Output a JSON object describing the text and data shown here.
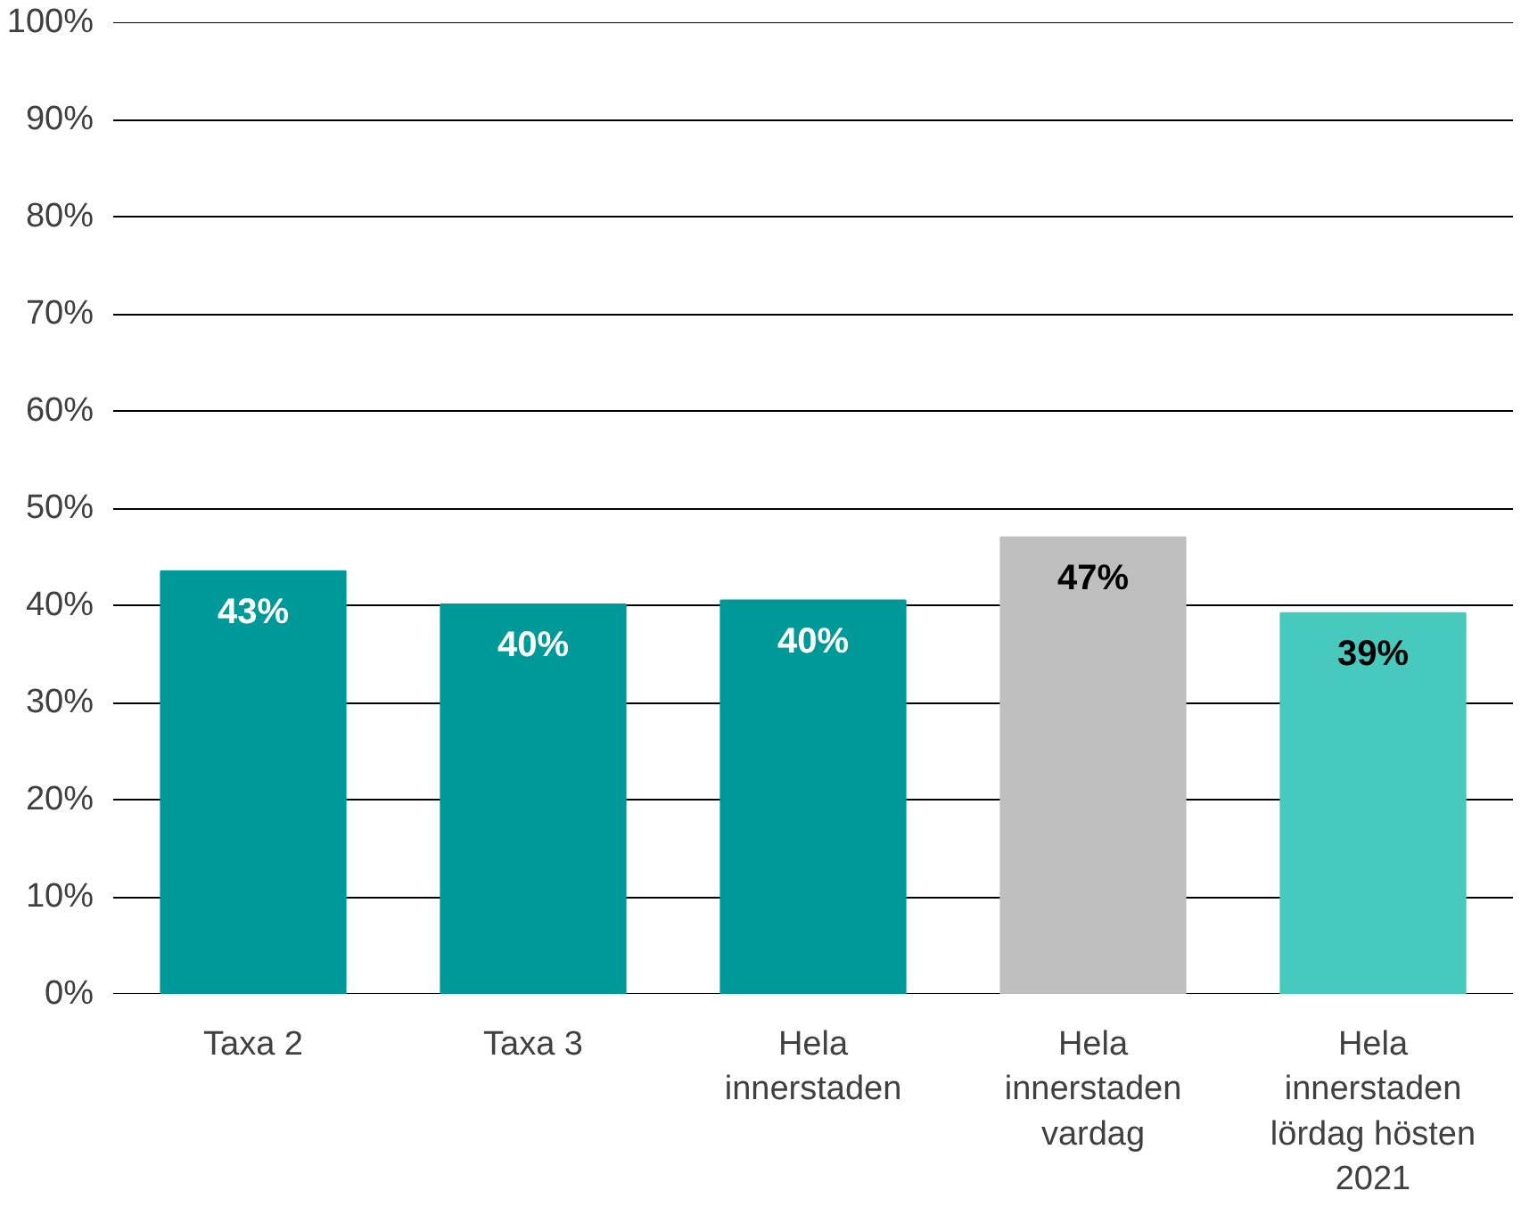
{
  "chart_data": {
    "type": "bar",
    "categories": [
      "Taxa 2",
      "Taxa 3",
      "Hela innerstaden",
      "Hela innerstaden vardag",
      "Hela innerstaden lördag hösten 2021"
    ],
    "values": [
      43.5,
      40.1,
      40.5,
      47.0,
      39.2
    ],
    "colors": [
      "#009999",
      "#009999",
      "#009999",
      "#bfbfbf",
      "#48c9bd"
    ],
    "value_labels": [
      "43%",
      "40%",
      "40%",
      "47%",
      "39%"
    ],
    "ylim": [
      0,
      100
    ],
    "yticks": [
      {
        "value": 0,
        "label": "0%"
      },
      {
        "value": 10,
        "label": "10%"
      },
      {
        "value": 20,
        "label": "20%"
      },
      {
        "value": 30,
        "label": "30%"
      },
      {
        "value": 40,
        "label": "40%"
      },
      {
        "value": 50,
        "label": "50%"
      },
      {
        "value": 60,
        "label": "60%"
      },
      {
        "value": 70,
        "label": "70%"
      },
      {
        "value": 80,
        "label": "80%"
      },
      {
        "value": 90,
        "label": "90%"
      },
      {
        "value": 100,
        "label": "100%"
      }
    ],
    "grid": "y"
  }
}
